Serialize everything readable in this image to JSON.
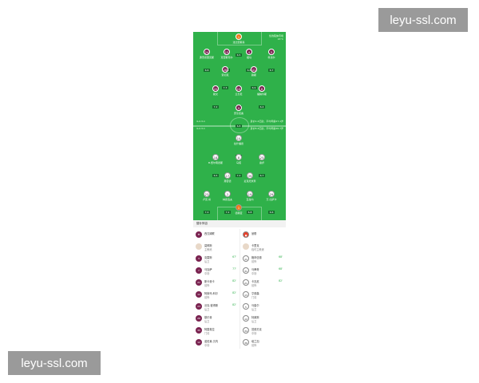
{
  "watermark": "leyu-ssl.com",
  "match_info": {
    "venue": "伦敦碗体育场",
    "weather": "15°C"
  },
  "home": {
    "name": "西汉姆联",
    "formation": "4-2-3-1",
    "coach": "莫耶斯",
    "coach_role": "主教练",
    "stats": "身价2.2亿欧，平均年龄27.1岁",
    "lineup": [
      {
        "num": "1",
        "name": "法比安斯基",
        "rating": "6.5",
        "gk": true
      },
      {
        "num": "24",
        "name": "弗雷德里克斯",
        "rating": "6.6"
      },
      {
        "num": "15",
        "name": "克雷斯韦尔",
        "rating": "6.8"
      },
      {
        "num": "4",
        "name": "祖马",
        "rating": "6.8"
      },
      {
        "num": "5",
        "name": "科法尔",
        "rating": "6.7"
      },
      {
        "num": "28",
        "name": "索切克",
        "rating": "7.3"
      },
      {
        "num": "41",
        "name": "赖斯",
        "rating": "6.9"
      },
      {
        "num": "20",
        "name": "鲍文",
        "rating": "7.2"
      },
      {
        "num": "10",
        "name": "兰齐尼",
        "rating": "7.1"
      },
      {
        "num": "8",
        "name": "福纳尔斯",
        "rating": "6.4"
      },
      {
        "num": "9",
        "name": "安东尼奥",
        "rating": "6.8"
      }
    ]
  },
  "away": {
    "name": "曼联",
    "formation": "4-2-3-1",
    "coach": "卡里克",
    "coach_role": "临时主教练",
    "stats": "身价8.4亿欧，平均年龄26.7岁",
    "lineup": [
      {
        "num": "10",
        "name": "拉什福德",
        "rating": "6.6"
      },
      {
        "num": "18",
        "name": "B.费尔南德斯",
        "rating": "6.5"
      },
      {
        "num": "8",
        "name": "马塔",
        "rating": "7.2"
      },
      {
        "num": "25",
        "name": "桑乔",
        "rating": "6.7"
      },
      {
        "num": "17",
        "name": "弗雷德",
        "rating": "6.6"
      },
      {
        "num": "39",
        "name": "麦克托米奈",
        "rating": "6.7"
      },
      {
        "num": "23",
        "name": "卢克·肖",
        "rating": "7.4"
      },
      {
        "num": "2",
        "name": "林德洛夫",
        "rating": "7.2"
      },
      {
        "num": "19",
        "name": "瓦拉内",
        "rating": "6.8"
      },
      {
        "num": "29",
        "name": "万-比萨卡",
        "rating": "6.6"
      },
      {
        "num": "1",
        "name": "德赫亚",
        "rating": "7.3",
        "gk": true
      }
    ]
  },
  "bench": {
    "title": "替补阵容",
    "home": [
      {
        "num": "3",
        "name": "克雷斯",
        "pos": "后卫",
        "sub": "67'"
      },
      {
        "num": "7",
        "name": "马加萨",
        "pos": "中场",
        "sub": "77'"
      },
      {
        "num": "21",
        "name": "斯卡曼卡",
        "pos": "前锋",
        "sub": "82'"
      },
      {
        "num": "11",
        "name": "阿索玛-科尔",
        "pos": "前锋",
        "sub": "82'"
      },
      {
        "num": "23",
        "name": "沃克-彼得斯",
        "pos": "后卫",
        "sub": "82'"
      },
      {
        "num": "26",
        "name": "基尔曼",
        "pos": "后卫"
      },
      {
        "num": "35",
        "name": "阿雷奥拉",
        "pos": "门将"
      },
      {
        "num": "12",
        "name": "诺伯莱-贝内",
        "pos": "中场"
      }
    ],
    "away": [
      {
        "num": "11",
        "name": "格林伍德",
        "pos": "前锋",
        "sub": "68'"
      },
      {
        "num": "31",
        "name": "马蒂奇",
        "pos": "中场",
        "sub": "68'"
      },
      {
        "num": "21",
        "name": "卡瓦尼",
        "pos": "前锋",
        "sub": "82'"
      },
      {
        "num": "13",
        "name": "亨德森",
        "pos": "门将"
      },
      {
        "num": "5",
        "name": "马奎尔",
        "pos": "后卫"
      },
      {
        "num": "12",
        "name": "特莱斯",
        "pos": "后卫"
      },
      {
        "num": "34",
        "name": "范德贝克",
        "pos": "中场"
      },
      {
        "num": "36",
        "name": "埃兰加",
        "pos": "前锋"
      }
    ]
  },
  "colors": {
    "pitch": "#2fb14a",
    "home": "#7a2350",
    "gk": "#f07a18"
  }
}
